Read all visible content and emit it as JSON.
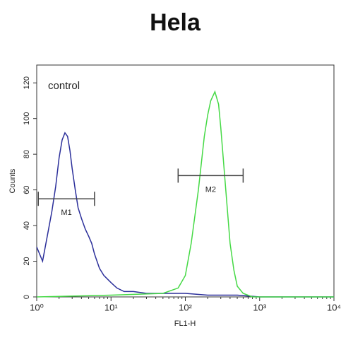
{
  "chart_data": {
    "type": "line",
    "title": "Hela",
    "x_label": "FL1-H",
    "y_label": "Counts",
    "annotation": "control",
    "xscale": "log",
    "xlim": [
      1,
      10000
    ],
    "ylim": [
      0,
      130
    ],
    "xticks": [
      {
        "value": 1,
        "label": "10⁰"
      },
      {
        "value": 10,
        "label": "10¹"
      },
      {
        "value": 100,
        "label": "10²"
      },
      {
        "value": 1000,
        "label": "10³"
      },
      {
        "value": 10000,
        "label": "10⁴"
      }
    ],
    "yticks": [
      0,
      20,
      40,
      60,
      80,
      100,
      120
    ],
    "series": [
      {
        "color": "#2b2f9a",
        "x": [
          1,
          1.2,
          1.4,
          1.6,
          1.8,
          2,
          2.2,
          2.4,
          2.6,
          2.8,
          3,
          3.3,
          3.6,
          4,
          4.5,
          5,
          5.5,
          6,
          7,
          8,
          10,
          12,
          15,
          20,
          30,
          50,
          80,
          100,
          200,
          500,
          1000,
          2000,
          5000,
          10000
        ],
        "values": [
          28,
          20,
          35,
          48,
          62,
          78,
          88,
          92,
          90,
          82,
          72,
          60,
          50,
          44,
          38,
          34,
          30,
          24,
          16,
          12,
          8,
          5,
          3,
          3,
          2,
          2,
          2,
          2,
          1,
          1,
          0,
          0,
          0,
          0
        ]
      },
      {
        "color": "#45d945",
        "x": [
          1,
          10,
          50,
          80,
          100,
          120,
          150,
          180,
          200,
          220,
          250,
          280,
          300,
          350,
          400,
          450,
          500,
          600,
          800,
          1000,
          10000
        ],
        "values": [
          0,
          1,
          2,
          5,
          12,
          30,
          60,
          90,
          102,
          110,
          115,
          108,
          95,
          60,
          30,
          15,
          6,
          2,
          0,
          0,
          0
        ]
      }
    ],
    "gates": [
      {
        "label": "M1",
        "x": [
          1.05,
          6
        ],
        "y": 55
      },
      {
        "label": "M2",
        "x": [
          80,
          600
        ],
        "y": 68
      }
    ]
  }
}
